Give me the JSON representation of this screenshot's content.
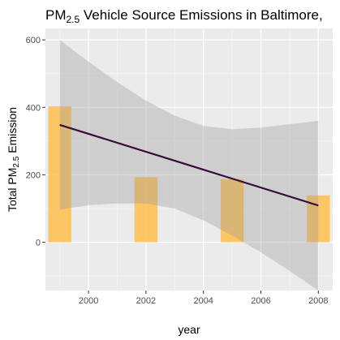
{
  "chart_data": {
    "type": "bar",
    "title": {
      "prefix": "PM",
      "subscript": "2.5",
      "suffix": " Vehicle Source Emissions in Baltimore,"
    },
    "xlabel": "year",
    "ylabel": {
      "prefix": "Total PM",
      "subscript": "2.5",
      "suffix": " Emission"
    },
    "x_ticks": [
      {
        "value": 2000,
        "label": "2000"
      },
      {
        "value": 2002,
        "label": "2002"
      },
      {
        "value": 2004,
        "label": "2004"
      },
      {
        "value": 2006,
        "label": "2006"
      },
      {
        "value": 2008,
        "label": "2008"
      }
    ],
    "y_ticks": [
      {
        "value": 0,
        "label": "0"
      },
      {
        "value": 200,
        "label": "200"
      },
      {
        "value": 400,
        "label": "400"
      },
      {
        "value": 600,
        "label": "600"
      }
    ],
    "xlim": [
      1998.5,
      2008.5
    ],
    "ylim": [
      -143,
      634
    ],
    "bar_width_years": 0.8,
    "bars": [
      {
        "year": 1999,
        "value": 403
      },
      {
        "year": 2002,
        "value": 193
      },
      {
        "year": 2005,
        "value": 187
      },
      {
        "year": 2008,
        "value": 139
      }
    ],
    "trend_line": {
      "x": [
        1999,
        2008
      ],
      "y": [
        348,
        109
      ]
    },
    "confidence_band": {
      "x": [
        1999,
        2000,
        2001,
        2002,
        2003,
        2004,
        2005,
        2006,
        2007,
        2008
      ],
      "upper": [
        600,
        535,
        475,
        420,
        375,
        345,
        335,
        340,
        350,
        360
      ],
      "lower": [
        97,
        110,
        115,
        115,
        100,
        65,
        20,
        -30,
        -85,
        -143
      ]
    },
    "grid": true,
    "legend": "none",
    "colors": {
      "panel_background": "#ebebeb",
      "grid_major": "#ffffff",
      "grid_minor": "#f4f4f4",
      "bar_fill": "#ffc04c",
      "bar_opacity": 0.85,
      "band_fill": "#999999",
      "band_opacity": 0.35,
      "line": "#3a0a3a"
    }
  }
}
